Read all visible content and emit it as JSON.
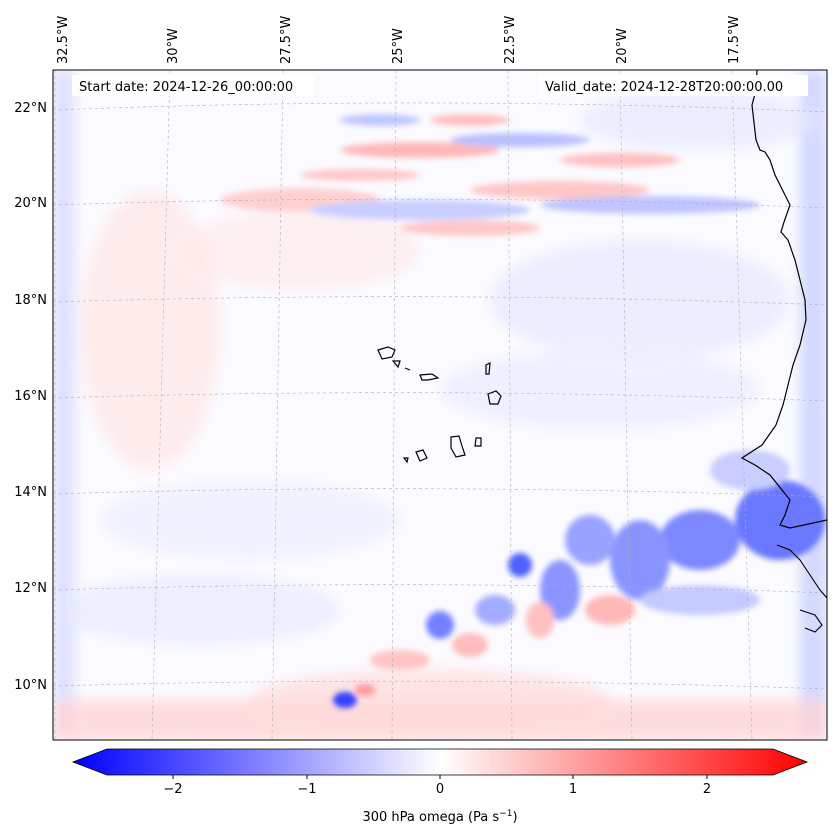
{
  "map": {
    "start_date": "Start date: 2024-12-26_00:00:00",
    "valid_date": "Valid_date: 2024-12-28T20:00:00.00",
    "lon_labels": [
      "32.5°W",
      "30°W",
      "27.5°W",
      "25°W",
      "22.5°W",
      "20°W",
      "17.5°W"
    ],
    "lat_labels": [
      "22°N",
      "20°N",
      "18°N",
      "16°N",
      "14°N",
      "12°N",
      "10°N"
    ],
    "colorbar": {
      "ticks": [
        "−2",
        "−1",
        "0",
        "1",
        "2"
      ],
      "tick_values": [
        -2,
        -1,
        0,
        1,
        2
      ],
      "range": [
        -2.5,
        2.5
      ],
      "label": "300 hPa omega (Pa s",
      "label_exp": "−1",
      "label_end": ")",
      "neg_color": "#0000ff",
      "pos_color": "#ff0000"
    }
  }
}
